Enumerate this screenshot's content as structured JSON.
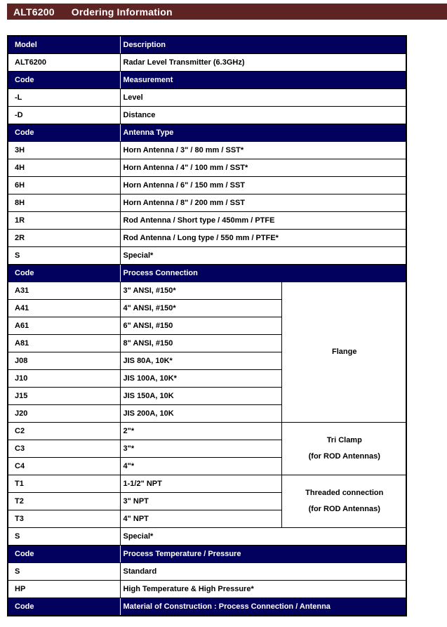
{
  "header": {
    "model": "ALT6200",
    "title": "Ordering Information"
  },
  "colors": {
    "title_bar_bg": "#5E2423",
    "title_bar_text": "#FFFFFF",
    "section_header_bg": "#02025E",
    "section_header_text": "#FFFFFF",
    "body_text": "#000000",
    "border": "#000000"
  },
  "table": {
    "rows": [
      {
        "type": "header",
        "cells": [
          {
            "text": "Model"
          },
          {
            "text": "Description",
            "colspan": 2
          }
        ]
      },
      {
        "type": "data",
        "cells": [
          {
            "text": "ALT6200"
          },
          {
            "text": "Radar Level Transmitter (6.3GHz)",
            "colspan": 2
          }
        ]
      },
      {
        "type": "header",
        "cells": [
          {
            "text": "Code"
          },
          {
            "text": "Measurement",
            "colspan": 2
          }
        ]
      },
      {
        "type": "data",
        "cells": [
          {
            "text": "-L"
          },
          {
            "text": "Level",
            "colspan": 2
          }
        ]
      },
      {
        "type": "data",
        "cells": [
          {
            "text": "-D"
          },
          {
            "text": "Distance",
            "colspan": 2
          }
        ]
      },
      {
        "type": "header",
        "cells": [
          {
            "text": "Code"
          },
          {
            "text": "Antenna Type",
            "colspan": 2
          }
        ]
      },
      {
        "type": "data",
        "cells": [
          {
            "text": "3H"
          },
          {
            "text": "Horn Antenna / 3\"  / 80 mm / SST*",
            "colspan": 2
          }
        ]
      },
      {
        "type": "data",
        "cells": [
          {
            "text": "4H"
          },
          {
            "text": "Horn Antenna / 4\"  / 100 mm / SST*",
            "colspan": 2
          }
        ]
      },
      {
        "type": "data",
        "cells": [
          {
            "text": "6H"
          },
          {
            "text": "Horn Antenna / 6\"  / 150 mm / SST",
            "colspan": 2
          }
        ]
      },
      {
        "type": "data",
        "cells": [
          {
            "text": "8H"
          },
          {
            "text": "Horn Antenna / 8\"  / 200 mm / SST",
            "colspan": 2
          }
        ]
      },
      {
        "type": "data",
        "cells": [
          {
            "text": "1R"
          },
          {
            "text": "Rod Antenna / Short type / 450mm / PTFE",
            "colspan": 2
          }
        ]
      },
      {
        "type": "data",
        "cells": [
          {
            "text": "2R"
          },
          {
            "text": "Rod Antenna / Long type / 550 mm / PTFE*",
            "colspan": 2
          }
        ]
      },
      {
        "type": "data",
        "cells": [
          {
            "text": "S"
          },
          {
            "text": "Special*",
            "colspan": 2
          }
        ]
      },
      {
        "type": "header",
        "cells": [
          {
            "text": "Code"
          },
          {
            "text": "Process Connection",
            "colspan": 2
          }
        ]
      },
      {
        "type": "data",
        "cells": [
          {
            "text": "A31"
          },
          {
            "text": "3\" ANSI, #150*"
          },
          {
            "lines": [
              "Flange"
            ],
            "rowspan": 8,
            "group": true
          }
        ]
      },
      {
        "type": "data",
        "cells": [
          {
            "text": "A41"
          },
          {
            "text": "4\" ANSI, #150*"
          }
        ]
      },
      {
        "type": "data",
        "cells": [
          {
            "text": "A61"
          },
          {
            "text": "6\" ANSI, #150"
          }
        ]
      },
      {
        "type": "data",
        "cells": [
          {
            "text": "A81"
          },
          {
            "text": "8\" ANSI, #150"
          }
        ]
      },
      {
        "type": "data",
        "cells": [
          {
            "text": "J08"
          },
          {
            "text": "JIS 80A, 10K*"
          }
        ]
      },
      {
        "type": "data",
        "cells": [
          {
            "text": "J10"
          },
          {
            "text": "JIS 100A, 10K*"
          }
        ]
      },
      {
        "type": "data",
        "cells": [
          {
            "text": "J15"
          },
          {
            "text": "JIS 150A, 10K"
          }
        ]
      },
      {
        "type": "data",
        "cells": [
          {
            "text": "J20"
          },
          {
            "text": "JIS 200A, 10K"
          }
        ]
      },
      {
        "type": "data",
        "cells": [
          {
            "text": "C2"
          },
          {
            "text": "2\"*"
          },
          {
            "lines": [
              "Tri Clamp",
              "(for ROD Antennas)"
            ],
            "rowspan": 3,
            "group": true
          }
        ]
      },
      {
        "type": "data",
        "cells": [
          {
            "text": "C3"
          },
          {
            "text": "3\"*"
          }
        ]
      },
      {
        "type": "data",
        "cells": [
          {
            "text": "C4"
          },
          {
            "text": "4\"*"
          }
        ]
      },
      {
        "type": "data",
        "cells": [
          {
            "text": "T1"
          },
          {
            "text": "1-1/2\" NPT"
          },
          {
            "lines": [
              "Threaded connection",
              "(for ROD Antennas)"
            ],
            "rowspan": 3,
            "group": true
          }
        ]
      },
      {
        "type": "data",
        "cells": [
          {
            "text": "T2"
          },
          {
            "text": "3\" NPT"
          }
        ]
      },
      {
        "type": "data",
        "cells": [
          {
            "text": "T3"
          },
          {
            "text": "4\" NPT"
          }
        ]
      },
      {
        "type": "data",
        "cells": [
          {
            "text": "S"
          },
          {
            "text": "Special*",
            "colspan": 2
          }
        ]
      },
      {
        "type": "header",
        "cells": [
          {
            "text": "Code"
          },
          {
            "text": "Process Temperature / Pressure",
            "colspan": 2
          }
        ]
      },
      {
        "type": "data",
        "cells": [
          {
            "text": "S"
          },
          {
            "text": "Standard",
            "colspan": 2
          }
        ]
      },
      {
        "type": "data",
        "cells": [
          {
            "text": "HP"
          },
          {
            "text": "High Temperature & High Pressure*",
            "colspan": 2
          }
        ]
      },
      {
        "type": "header",
        "cells": [
          {
            "text": "Code"
          },
          {
            "text": "Material of Construction : Process Connection / Antenna",
            "colspan": 2
          }
        ]
      }
    ]
  }
}
